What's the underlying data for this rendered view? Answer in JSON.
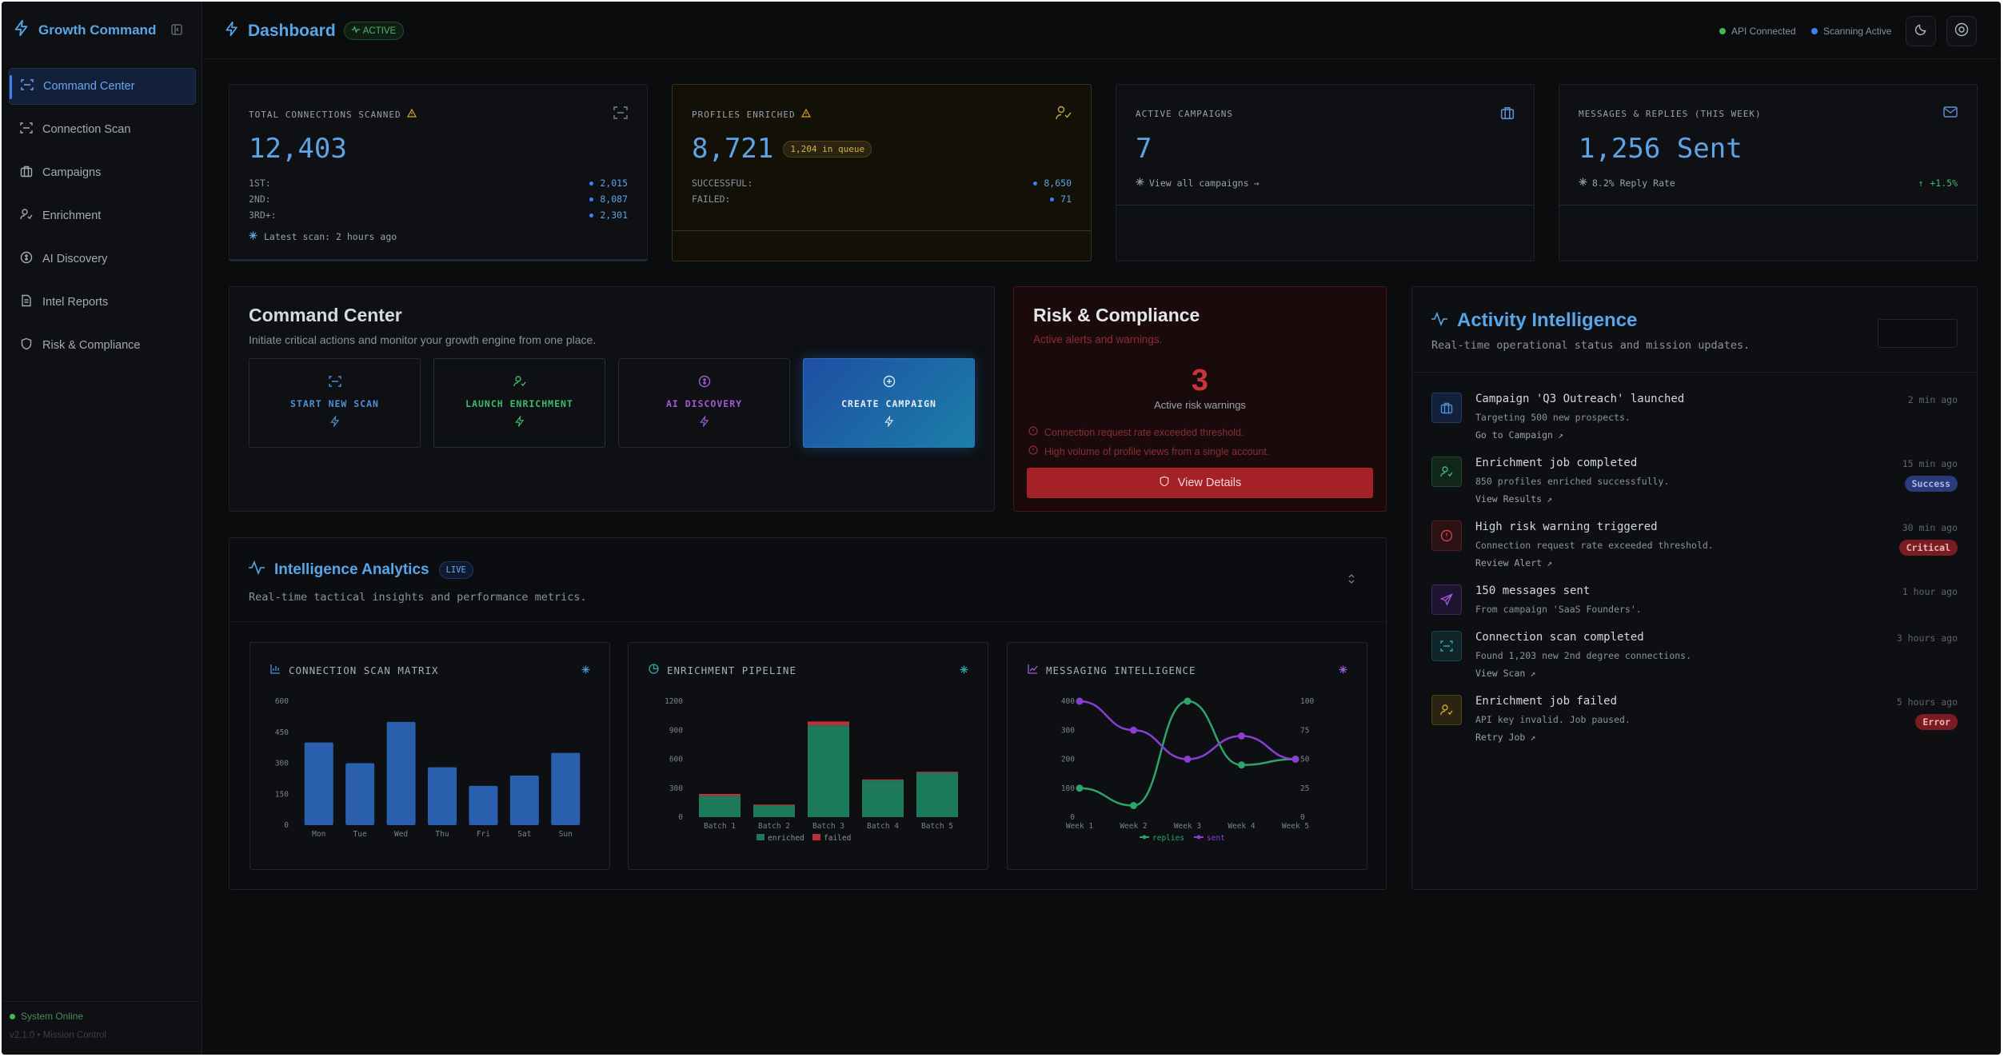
{
  "sidebar": {
    "brand": "Growth Command",
    "items": [
      {
        "label": "Command Center",
        "icon": "scan-icon"
      },
      {
        "label": "Connection Scan",
        "icon": "scan-icon"
      },
      {
        "label": "Campaigns",
        "icon": "briefcase-icon"
      },
      {
        "label": "Enrichment",
        "icon": "user-check-icon"
      },
      {
        "label": "AI Discovery",
        "icon": "discovery-icon"
      },
      {
        "label": "Intel Reports",
        "icon": "document-icon"
      },
      {
        "label": "Risk & Compliance",
        "icon": "shield-icon"
      }
    ],
    "system_status": "System Online",
    "version": "v2.1.0 • Mission Control"
  },
  "topbar": {
    "title": "Dashboard",
    "badge": "ACTIVE",
    "api_status": "API Connected",
    "scan_status": "Scanning Active"
  },
  "stats": {
    "connections": {
      "label": "TOTAL CONNECTIONS SCANNED",
      "value": "12,403",
      "rows": [
        {
          "k": "1ST:",
          "v": "2,015"
        },
        {
          "k": "2ND:",
          "v": "8,087"
        },
        {
          "k": "3RD+:",
          "v": "2,301"
        }
      ],
      "footer": "Latest scan: 2 hours ago"
    },
    "profiles": {
      "label": "PROFILES ENRICHED",
      "value": "8,721",
      "queue": "1,204 in queue",
      "rows": [
        {
          "k": "SUCCESSFUL:",
          "v": "8,650"
        },
        {
          "k": "FAILED:",
          "v": "71"
        }
      ]
    },
    "campaigns": {
      "label": "ACTIVE CAMPAIGNS",
      "value": "7",
      "link": "View all campaigns"
    },
    "messages": {
      "label": "MESSAGES & REPLIES (THIS WEEK)",
      "value": "1,256 Sent",
      "reply_rate": "8.2% Reply Rate",
      "delta": "+1.5%"
    }
  },
  "command_center": {
    "title": "Command Center",
    "subtitle": "Initiate critical actions and monitor your growth engine from one place.",
    "actions": [
      {
        "label": "START NEW SCAN",
        "color": "#4f8fd6"
      },
      {
        "label": "LAUNCH ENRICHMENT",
        "color": "#3fb970"
      },
      {
        "label": "AI DISCOVERY",
        "color": "#a15bd8"
      },
      {
        "label": "CREATE CAMPAIGN",
        "color": "#e6edf3"
      }
    ]
  },
  "risk": {
    "title": "Risk & Compliance",
    "subtitle": "Active alerts and warnings.",
    "count": "3",
    "count_label": "Active risk warnings",
    "warnings": [
      "Connection request rate exceeded threshold.",
      "High volume of profile views from a single account."
    ],
    "button": "View Details"
  },
  "analytics": {
    "title": "Intelligence Analytics",
    "badge": "LIVE",
    "subtitle": "Real-time tactical insights and performance metrics.",
    "charts": [
      {
        "title": "CONNECTION SCAN MATRIX"
      },
      {
        "title": "ENRICHMENT PIPELINE"
      },
      {
        "title": "MESSAGING INTELLIGENCE"
      }
    ]
  },
  "chart_data": [
    {
      "type": "bar",
      "title": "CONNECTION SCAN MATRIX",
      "categories": [
        "Mon",
        "Tue",
        "Wed",
        "Thu",
        "Fri",
        "Sat",
        "Sun"
      ],
      "values": [
        400,
        300,
        500,
        280,
        190,
        240,
        350
      ],
      "ylim": [
        0,
        600
      ],
      "yticks": [
        "0",
        "150",
        "300",
        "450",
        "600"
      ],
      "color": "#2a5fae"
    },
    {
      "type": "bar",
      "title": "ENRICHMENT PIPELINE",
      "categories": [
        "Batch 1",
        "Batch 2",
        "Batch 3",
        "Batch 4",
        "Batch 5"
      ],
      "series": [
        {
          "name": "enriched",
          "values": [
            220,
            120,
            950,
            380,
            460
          ],
          "color": "#1d7a5a"
        },
        {
          "name": "failed",
          "values": [
            20,
            10,
            40,
            10,
            10
          ],
          "color": "#b8323c"
        }
      ],
      "ylim": [
        0,
        1200
      ],
      "yticks": [
        "0",
        "300",
        "600",
        "900",
        "1200"
      ]
    },
    {
      "type": "line",
      "title": "MESSAGING INTELLIGENCE",
      "categories": [
        "Week 1",
        "Week 2",
        "Week 3",
        "Week 4",
        "Week 5"
      ],
      "series": [
        {
          "name": "replies",
          "axis": "right",
          "values": [
            25,
            10,
            100,
            45,
            50
          ],
          "color": "#2ea36a"
        },
        {
          "name": "sent",
          "axis": "left",
          "values": [
            400,
            300,
            200,
            280,
            200
          ],
          "color": "#8a3ed1"
        }
      ],
      "ylim_left": [
        0,
        400
      ],
      "ylim_right": [
        0,
        100
      ],
      "yticks_left": [
        "0",
        "100",
        "200",
        "300",
        "400"
      ],
      "yticks_right": [
        "0",
        "25",
        "50",
        "75",
        "100"
      ]
    }
  ],
  "activity": {
    "title": "Activity Intelligence",
    "subtitle": "Real-time operational status and mission updates.",
    "items": [
      {
        "title": "Campaign 'Q3 Outreach' launched",
        "desc": "Targeting 500 new prospects.",
        "link": "Go to Campaign",
        "time": "2 min ago",
        "badge": "",
        "icon": "briefcase-icon",
        "color": "#4f8fd6",
        "bg": "#12203a"
      },
      {
        "title": "Enrichment job completed",
        "desc": "850 profiles enriched successfully.",
        "link": "View Results",
        "time": "15 min ago",
        "badge": "Success",
        "icon": "user-check-icon",
        "color": "#3fb970",
        "bg": "#11261a"
      },
      {
        "title": "High risk warning triggered",
        "desc": "Connection request rate exceeded threshold.",
        "link": "Review Alert",
        "time": "30 min ago",
        "badge": "Critical",
        "icon": "alert-icon",
        "color": "#d0434c",
        "bg": "#2a1114"
      },
      {
        "title": "150 messages sent",
        "desc": "From campaign 'SaaS Founders'.",
        "link": "",
        "time": "1 hour ago",
        "badge": "",
        "icon": "send-icon",
        "color": "#9b5ad8",
        "bg": "#1f1430"
      },
      {
        "title": "Connection scan completed",
        "desc": "Found 1,203 new 2nd degree connections.",
        "link": "View Scan",
        "time": "3 hours ago",
        "badge": "",
        "icon": "scan-icon",
        "color": "#36a3a3",
        "bg": "#10252a"
      },
      {
        "title": "Enrichment job failed",
        "desc": "API key invalid. Job paused.",
        "link": "Retry Job",
        "time": "5 hours ago",
        "badge": "Error",
        "icon": "user-check-icon",
        "color": "#d6a32e",
        "bg": "#2a2410"
      }
    ]
  }
}
